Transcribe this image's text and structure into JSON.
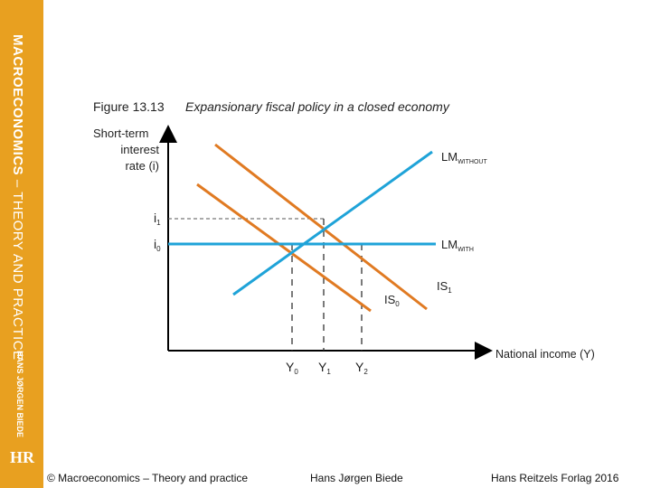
{
  "sidebar": {
    "title_bold": "MACROECONOMICS",
    "title_rest": " – THEORY AND PRACTICE",
    "author": "HANS JØRGEN BIEDE",
    "logo": "HR"
  },
  "figure": {
    "number": "Figure 13.13",
    "caption": "Expansionary fiscal policy in a closed economy",
    "y_axis_label_lines": [
      "Short-term",
      "interest",
      "rate (i)"
    ],
    "x_axis_label": "National income (Y)",
    "curves": {
      "lm_without": {
        "main": "LM",
        "sub": "WITHOUT"
      },
      "lm_with": {
        "main": "LM",
        "sub": "WITH"
      },
      "is0": {
        "main": "IS",
        "sub": "0"
      },
      "is1": {
        "main": "IS",
        "sub": "1"
      }
    },
    "y_ticks": {
      "i1": {
        "main": "i",
        "sub": "1"
      },
      "i0": {
        "main": "i",
        "sub": "0"
      }
    },
    "x_ticks": {
      "y0": {
        "main": "Y",
        "sub": "0"
      },
      "y1": {
        "main": "Y",
        "sub": "1"
      },
      "y2": {
        "main": "Y",
        "sub": "2"
      }
    },
    "colors": {
      "lm": "#1fa3d8",
      "is": "#e07a22",
      "axis": "#000000"
    }
  },
  "footer": {
    "copyright": "© Macroeconomics – Theory and practice",
    "author": "Hans Jørgen Biede",
    "publisher": "Hans Reitzels Forlag 2016"
  }
}
